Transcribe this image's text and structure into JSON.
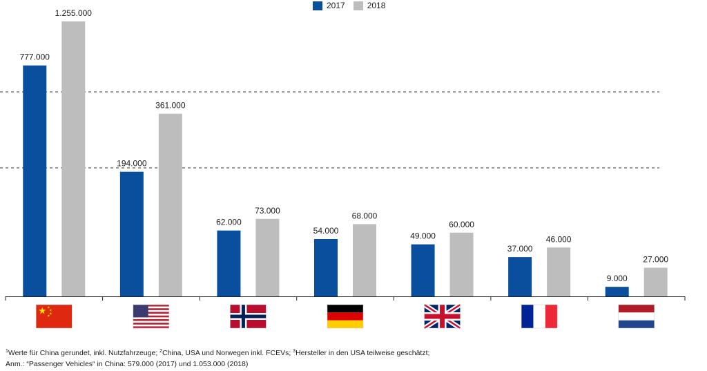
{
  "colors": {
    "series_2017": "#0a4f9e",
    "series_2018": "#bdbdbd"
  },
  "legend": [
    {
      "label": "2017",
      "color": "#0a4f9e"
    },
    {
      "label": "2018",
      "color": "#bdbdbd"
    }
  ],
  "chart_data": {
    "type": "bar",
    "categories": [
      "China",
      "USA",
      "Norwegen",
      "Deutschland",
      "Großbritannien",
      "Frankreich",
      "Niederlande"
    ],
    "category_icons": [
      "flag-china-icon",
      "flag-usa-icon",
      "flag-norway-icon",
      "flag-germany-icon",
      "flag-uk-icon",
      "flag-france-icon",
      "flag-netherlands-icon"
    ],
    "series": [
      {
        "name": "2017",
        "values": [
          777000,
          194000,
          62000,
          54000,
          49000,
          37000,
          9000
        ],
        "labels": [
          "777.000",
          "194.000",
          "62.000",
          "54.000",
          "49.000",
          "37.000",
          "9.000"
        ]
      },
      {
        "name": "2018",
        "values": [
          1255000,
          361000,
          73000,
          68000,
          60000,
          46000,
          27000
        ],
        "labels": [
          "1.255.000",
          "361.000",
          "73.000",
          "68.000",
          "60.000",
          "46.000",
          "27.000"
        ]
      }
    ],
    "axis_breaks": 2,
    "grid": false,
    "legend_position": "top-center",
    "title": "",
    "xlabel": "",
    "ylabel": ""
  },
  "footnotes": {
    "line1": [
      {
        "sup": "1",
        "text": "Werte für China gerundet, inkl. Nutzfahrzeuge; "
      },
      {
        "sup": "2",
        "text": "China, USA und Norwegen inkl. FCEVs; "
      },
      {
        "sup": "3",
        "text": "Hersteller in den USA teilweise geschätzt;"
      }
    ],
    "line2": "Anm.: “Passenger Vehicles“ in China: 579.000 (2017) und 1.053.000 (2018)"
  }
}
